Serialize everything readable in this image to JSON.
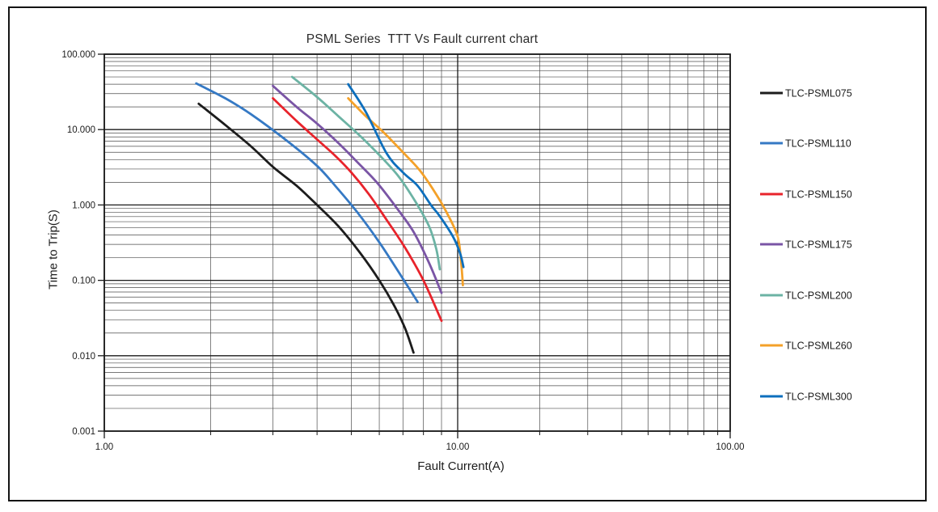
{
  "figure": {
    "background": "#ffffff",
    "border_color": "#141414",
    "grid_minor_color": "#4d4d4d",
    "grid_major_color": "#1a1a1a",
    "text_color": "#1c1c1c"
  },
  "chart_data": {
    "type": "line",
    "title": "PSML Series  TTT Vs Fault current chart",
    "xlabel": "Fault Current(A)",
    "ylabel": "Time to Trip(S)",
    "x_scale": "log",
    "y_scale": "log",
    "xlim": [
      1,
      100
    ],
    "ylim": [
      0.001,
      100
    ],
    "grid": "major+minor, both axes",
    "legend_position": "right",
    "x_ticks": [
      {
        "value": 1,
        "label": "1.00"
      },
      {
        "value": 10,
        "label": "10.00"
      },
      {
        "value": 100,
        "label": "100.00"
      }
    ],
    "y_ticks": [
      {
        "value": 100,
        "label": "100.000"
      },
      {
        "value": 10,
        "label": "10.000"
      },
      {
        "value": 1,
        "label": "1.000"
      },
      {
        "value": 0.1,
        "label": "0.100"
      },
      {
        "value": 0.01,
        "label": "0.010"
      },
      {
        "value": 0.001,
        "label": "0.001"
      }
    ],
    "series": [
      {
        "name": "TLC-PSML075",
        "color": "#1c1c1c",
        "points": [
          [
            1.85,
            22
          ],
          [
            2.2,
            11.5
          ],
          [
            2.6,
            6.0
          ],
          [
            3.0,
            3.2
          ],
          [
            3.5,
            1.8
          ],
          [
            4.0,
            1.0
          ],
          [
            4.6,
            0.52
          ],
          [
            5.3,
            0.23
          ],
          [
            6.0,
            0.1
          ],
          [
            6.6,
            0.047
          ],
          [
            7.1,
            0.023
          ],
          [
            7.5,
            0.011
          ]
        ]
      },
      {
        "name": "TLC-PSML110",
        "color": "#3579c4",
        "points": [
          [
            1.82,
            41
          ],
          [
            2.2,
            26
          ],
          [
            2.6,
            16
          ],
          [
            3.3,
            7.0
          ],
          [
            4.0,
            3.3
          ],
          [
            4.5,
            1.8
          ],
          [
            5.2,
            0.8
          ],
          [
            6.0,
            0.32
          ],
          [
            6.8,
            0.13
          ],
          [
            7.7,
            0.052
          ]
        ]
      },
      {
        "name": "TLC-PSML150",
        "color": "#e8232b",
        "points": [
          [
            3.0,
            26
          ],
          [
            3.5,
            13
          ],
          [
            4.0,
            7.4
          ],
          [
            4.5,
            4.5
          ],
          [
            5.0,
            2.7
          ],
          [
            5.6,
            1.4
          ],
          [
            6.3,
            0.63
          ],
          [
            7.1,
            0.27
          ],
          [
            8.0,
            0.1
          ],
          [
            9.0,
            0.029
          ]
        ]
      },
      {
        "name": "TLC-PSML175",
        "color": "#7a55a5",
        "points": [
          [
            3.0,
            38
          ],
          [
            3.5,
            20
          ],
          [
            4.0,
            12
          ],
          [
            4.6,
            6.6
          ],
          [
            5.2,
            3.7
          ],
          [
            5.9,
            2.0
          ],
          [
            6.7,
            0.93
          ],
          [
            7.5,
            0.44
          ],
          [
            8.3,
            0.17
          ],
          [
            9.0,
            0.068
          ]
        ]
      },
      {
        "name": "TLC-PSML200",
        "color": "#6cb3a4",
        "points": [
          [
            3.4,
            50
          ],
          [
            4.0,
            27
          ],
          [
            4.6,
            15
          ],
          [
            5.3,
            8.2
          ],
          [
            6.0,
            4.6
          ],
          [
            6.8,
            2.4
          ],
          [
            7.6,
            1.1
          ],
          [
            8.3,
            0.52
          ],
          [
            8.7,
            0.26
          ],
          [
            8.9,
            0.14
          ]
        ]
      },
      {
        "name": "TLC-PSML260",
        "color": "#f4a129",
        "points": [
          [
            4.9,
            26
          ],
          [
            5.5,
            15
          ],
          [
            6.2,
            9.0
          ],
          [
            7.0,
            5.0
          ],
          [
            7.8,
            2.9
          ],
          [
            8.6,
            1.5
          ],
          [
            9.3,
            0.8
          ],
          [
            10.0,
            0.38
          ],
          [
            10.3,
            0.17
          ],
          [
            10.45,
            0.086
          ]
        ]
      },
      {
        "name": "TLC-PSML300",
        "color": "#0d6fbd",
        "points": [
          [
            4.9,
            40
          ],
          [
            5.5,
            17
          ],
          [
            6.3,
            4.8
          ],
          [
            7.0,
            2.7
          ],
          [
            7.7,
            1.8
          ],
          [
            8.4,
            1.0
          ],
          [
            8.9,
            0.71
          ],
          [
            9.7,
            0.38
          ],
          [
            10.2,
            0.23
          ],
          [
            10.5,
            0.15
          ]
        ]
      }
    ]
  }
}
